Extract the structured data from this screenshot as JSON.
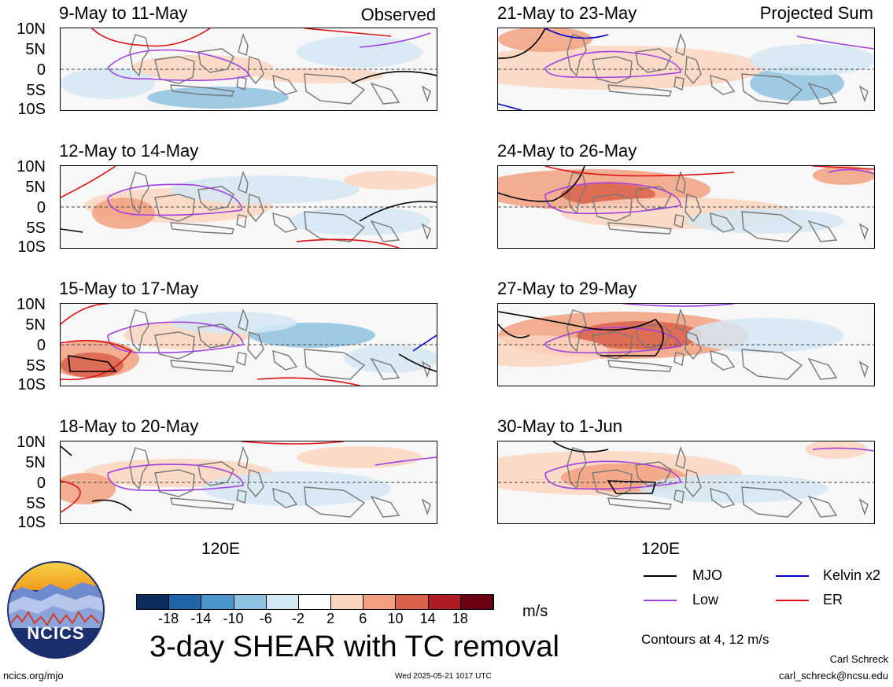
{
  "header": {
    "left_tag": "Observed",
    "right_tag": "Projected Sum"
  },
  "panels_left": [
    {
      "title": "9-May to 11-May"
    },
    {
      "title": "12-May to 14-May"
    },
    {
      "title": "15-May to 17-May"
    },
    {
      "title": "18-May to 20-May"
    }
  ],
  "panels_right": [
    {
      "title": "21-May to 23-May"
    },
    {
      "title": "24-May to 26-May"
    },
    {
      "title": "27-May to 29-May"
    },
    {
      "title": "30-May to 1-Jun"
    }
  ],
  "lat_labels": [
    "10N",
    "5N",
    "0",
    "5S",
    "10S"
  ],
  "lon_label": "120E",
  "colorbar": {
    "unit": "m/s",
    "labels": [
      "-18",
      "-14",
      "-10",
      "-6",
      "-2",
      "2",
      "6",
      "10",
      "14",
      "18"
    ],
    "colors": [
      "#0b2e5e",
      "#1f63a8",
      "#4a95cc",
      "#8fc2e0",
      "#d4e8f3",
      "#ffffff",
      "#fcd5bf",
      "#f2a07f",
      "#d9624a",
      "#b01c24",
      "#6b0015"
    ]
  },
  "legend": {
    "mjo": "MJO",
    "kelvin": "Kelvin x2",
    "low": "Low",
    "er": "ER",
    "colors": {
      "mjo": "#000000",
      "kelvin": "#0000cc",
      "low": "#a040e0",
      "er": "#dd1111"
    },
    "contours": "Contours at 4, 12 m/s"
  },
  "main_title": "3-day SHEAR with TC removal",
  "logo_text": "NCICS",
  "footer": {
    "left": "ncics.org/mjo",
    "timestamp": "Wed 2025-05-21 1017 UTC",
    "author": "Carl Schreck",
    "email": "carl_schreck@ncsu.edu"
  }
}
